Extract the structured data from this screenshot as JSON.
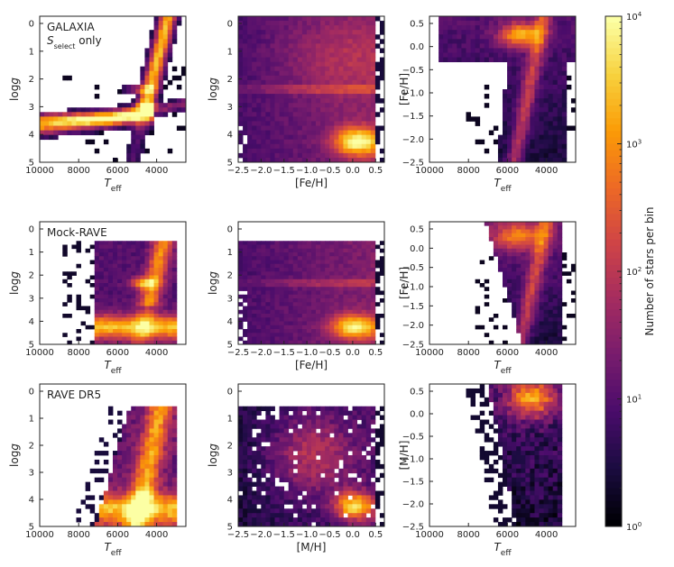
{
  "colors": {
    "colormap": [
      "#000004",
      "#1b0c41",
      "#4a0c6b",
      "#781c6d",
      "#a52c60",
      "#cf4446",
      "#ed6925",
      "#fb9b06",
      "#f7d13d",
      "#fcffa4"
    ],
    "axis": "#222222",
    "background": "#ffffff"
  },
  "colorbar": {
    "label": "Number of stars per bin",
    "ticks": [
      {
        "base": "10",
        "exp": "0",
        "value": 1
      },
      {
        "base": "10",
        "exp": "1",
        "value": 10
      },
      {
        "base": "10",
        "exp": "2",
        "value": 100
      },
      {
        "base": "10",
        "exp": "3",
        "value": 1000
      },
      {
        "base": "10",
        "exp": "4",
        "value": 10000
      }
    ],
    "scale": "log",
    "range": [
      1,
      10000
    ]
  },
  "chart_data": [
    {
      "type": "heatmap",
      "row": 0,
      "col": 0,
      "annotation": [
        "GALAXIA",
        "S_select only"
      ],
      "annotation_line1": "GALAXIA",
      "annotation_sym": "S",
      "annotation_sub": "select",
      "annotation_rest": " only",
      "xlabel": "T_eff",
      "xlabel_main": "T",
      "xlabel_sub": "eff",
      "ylabel": "log g",
      "xlim": [
        10000,
        2500
      ],
      "ylim": [
        5,
        -0.3
      ],
      "xticks": [
        "10000",
        "8000",
        "6000",
        "4000"
      ],
      "yticks": [
        "0",
        "1",
        "2",
        "3",
        "4",
        "5"
      ],
      "pattern": "hrd_select"
    },
    {
      "type": "heatmap",
      "row": 0,
      "col": 1,
      "xlabel": "[Fe/H]",
      "ylabel": "log g",
      "xlim": [
        -2.5,
        0.7
      ],
      "ylim": [
        5,
        -0.3
      ],
      "xticks": [
        "−2.5",
        "−2.0",
        "−1.5",
        "−1.0",
        "−0.5",
        "0.0",
        "0.5"
      ],
      "yticks": [
        "0",
        "1",
        "2",
        "3",
        "4",
        "5"
      ],
      "pattern": "feh_logg"
    },
    {
      "type": "heatmap",
      "row": 0,
      "col": 2,
      "xlabel": "T_eff",
      "xlabel_main": "T",
      "xlabel_sub": "eff",
      "ylabel": "[Fe/H]",
      "xlim": [
        10000,
        2500
      ],
      "ylim": [
        -2.5,
        0.7
      ],
      "xticks": [
        "10000",
        "8000",
        "6000",
        "4000"
      ],
      "yticks": [
        "0.5",
        "0.0",
        "−0.5",
        "−1.0",
        "−1.5",
        "−2.0",
        "−2.5"
      ],
      "pattern": "teff_feh_select"
    },
    {
      "type": "heatmap",
      "row": 1,
      "col": 0,
      "annotation": [
        "Mock-RAVE"
      ],
      "annotation_line1": "Mock-RAVE",
      "xlabel": "T_eff",
      "xlabel_main": "T",
      "xlabel_sub": "eff",
      "ylabel": "log g",
      "xlim": [
        10000,
        2500
      ],
      "ylim": [
        5,
        -0.3
      ],
      "xticks": [
        "10000",
        "8000",
        "6000",
        "4000"
      ],
      "yticks": [
        "0",
        "1",
        "2",
        "3",
        "4",
        "5"
      ],
      "pattern": "hrd_mock"
    },
    {
      "type": "heatmap",
      "row": 1,
      "col": 1,
      "xlabel": "[Fe/H]",
      "ylabel": "log g",
      "xlim": [
        -2.5,
        0.7
      ],
      "ylim": [
        5,
        -0.3
      ],
      "xticks": [
        "−2.5",
        "−2.0",
        "−1.5",
        "−1.0",
        "−0.5",
        "0.0",
        "0.5"
      ],
      "yticks": [
        "0",
        "1",
        "2",
        "3",
        "4",
        "5"
      ],
      "pattern": "feh_logg_mock"
    },
    {
      "type": "heatmap",
      "row": 1,
      "col": 2,
      "xlabel": "T_eff",
      "xlabel_main": "T",
      "xlabel_sub": "eff",
      "ylabel": "[Fe/H]",
      "xlim": [
        10000,
        2500
      ],
      "ylim": [
        -2.5,
        0.7
      ],
      "xticks": [
        "10000",
        "8000",
        "6000",
        "4000"
      ],
      "yticks": [
        "0.5",
        "0.0",
        "−0.5",
        "−1.0",
        "−1.5",
        "−2.0",
        "−2.5"
      ],
      "pattern": "teff_feh_mock"
    },
    {
      "type": "heatmap",
      "row": 2,
      "col": 0,
      "annotation": [
        "RAVE DR5"
      ],
      "annotation_line1": "RAVE DR5",
      "xlabel": "T_eff",
      "xlabel_main": "T",
      "xlabel_sub": "eff",
      "ylabel": "log g",
      "xlim": [
        10000,
        2500
      ],
      "ylim": [
        5,
        -0.3
      ],
      "xticks": [
        "10000",
        "8000",
        "6000",
        "4000"
      ],
      "yticks": [
        "0",
        "1",
        "2",
        "3",
        "4",
        "5"
      ],
      "pattern": "hrd_rave"
    },
    {
      "type": "heatmap",
      "row": 2,
      "col": 1,
      "xlabel": "[M/H]",
      "ylabel": "log g",
      "xlim": [
        -2.5,
        0.7
      ],
      "ylim": [
        5,
        -0.3
      ],
      "xticks": [
        "−2.5",
        "−2.0",
        "−1.5",
        "−1.0",
        "−0.5",
        "0.0",
        "0.5"
      ],
      "yticks": [
        "0",
        "1",
        "2",
        "3",
        "4",
        "5"
      ],
      "pattern": "mh_logg_rave"
    },
    {
      "type": "heatmap",
      "row": 2,
      "col": 2,
      "xlabel": "T_eff",
      "xlabel_main": "T",
      "xlabel_sub": "eff",
      "ylabel": "[M/H]",
      "xlim": [
        10000,
        2500
      ],
      "ylim": [
        -2.5,
        0.7
      ],
      "xticks": [
        "10000",
        "8000",
        "6000",
        "4000"
      ],
      "yticks": [
        "0.5",
        "0.0",
        "−0.5",
        "−1.0",
        "−1.5",
        "−2.0",
        "−2.5"
      ],
      "pattern": "teff_mh_rave"
    }
  ]
}
